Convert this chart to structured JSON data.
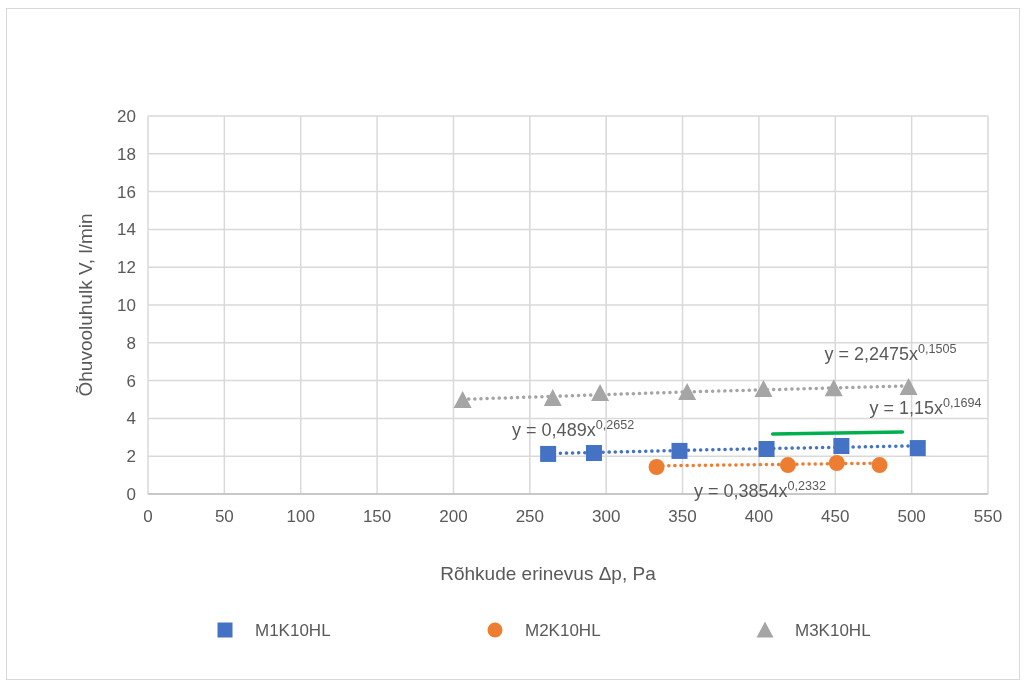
{
  "chart_data": {
    "type": "scatter",
    "xlabel": "Rõhkude erinevus Δp, Pa",
    "ylabel": "Õhuvooluhulk V, l/min",
    "xlim": [
      0,
      550
    ],
    "xticks": [
      0,
      50,
      100,
      150,
      200,
      250,
      300,
      350,
      400,
      450,
      500,
      550
    ],
    "ylim": [
      0,
      20
    ],
    "yticks": [
      0,
      2,
      4,
      6,
      8,
      10,
      12,
      14,
      16,
      18,
      20
    ],
    "grid": true,
    "legend": "bottom",
    "series": [
      {
        "name": "M1K10HL",
        "marker": "square",
        "color": "#4472c4",
        "x": [
          262,
          292,
          348,
          405,
          454,
          504
        ],
        "values": [
          2.12,
          2.17,
          2.28,
          2.38,
          2.54,
          2.43
        ]
      },
      {
        "name": "M2K10HL",
        "marker": "circle",
        "color": "#ed7d31",
        "x": [
          333,
          419,
          451,
          479
        ],
        "values": [
          1.43,
          1.53,
          1.64,
          1.53
        ]
      },
      {
        "name": "M3K10HL",
        "marker": "triangle",
        "color": "#a5a5a5",
        "x": [
          206,
          265,
          296,
          353,
          403,
          449,
          498
        ],
        "values": [
          4.97,
          5.08,
          5.34,
          5.4,
          5.56,
          5.6,
          5.66
        ]
      },
      {
        "type": "line",
        "marker": "none",
        "line_style": "dotted",
        "color": "#4472c4",
        "x": [
          262,
          383,
          504
        ],
        "values": [
          2.14,
          2.37,
          2.55
        ]
      },
      {
        "type": "line",
        "marker": "none",
        "line_style": "dotted",
        "color": "#ed7d31",
        "x": [
          333,
          406,
          479
        ],
        "values": [
          1.49,
          1.56,
          1.63
        ]
      },
      {
        "type": "line",
        "marker": "none",
        "line_style": "dotted",
        "color": "#a5a5a5",
        "x": [
          206,
          352,
          498
        ],
        "values": [
          5.01,
          5.4,
          5.72
        ]
      },
      {
        "type": "line",
        "marker": "none",
        "line_style": "solid",
        "color": "#00b050",
        "x": [
          409,
          494
        ],
        "values": [
          3.17,
          3.28
        ]
      }
    ],
    "annotations": [
      {
        "text": "y = 0,489x$^{0,2652}$",
        "x": 262,
        "y": 2.14
      },
      {
        "text": "y = 2,2475x$^{0,1505}$",
        "x": 498,
        "y": 5.72
      },
      {
        "text": "y = 1,15x$^{0,1694}$",
        "x": 494,
        "y": 3.28
      },
      {
        "text": "y = 0,3854x$^{0,2332}$",
        "x": 406,
        "y": 1.56
      }
    ]
  }
}
